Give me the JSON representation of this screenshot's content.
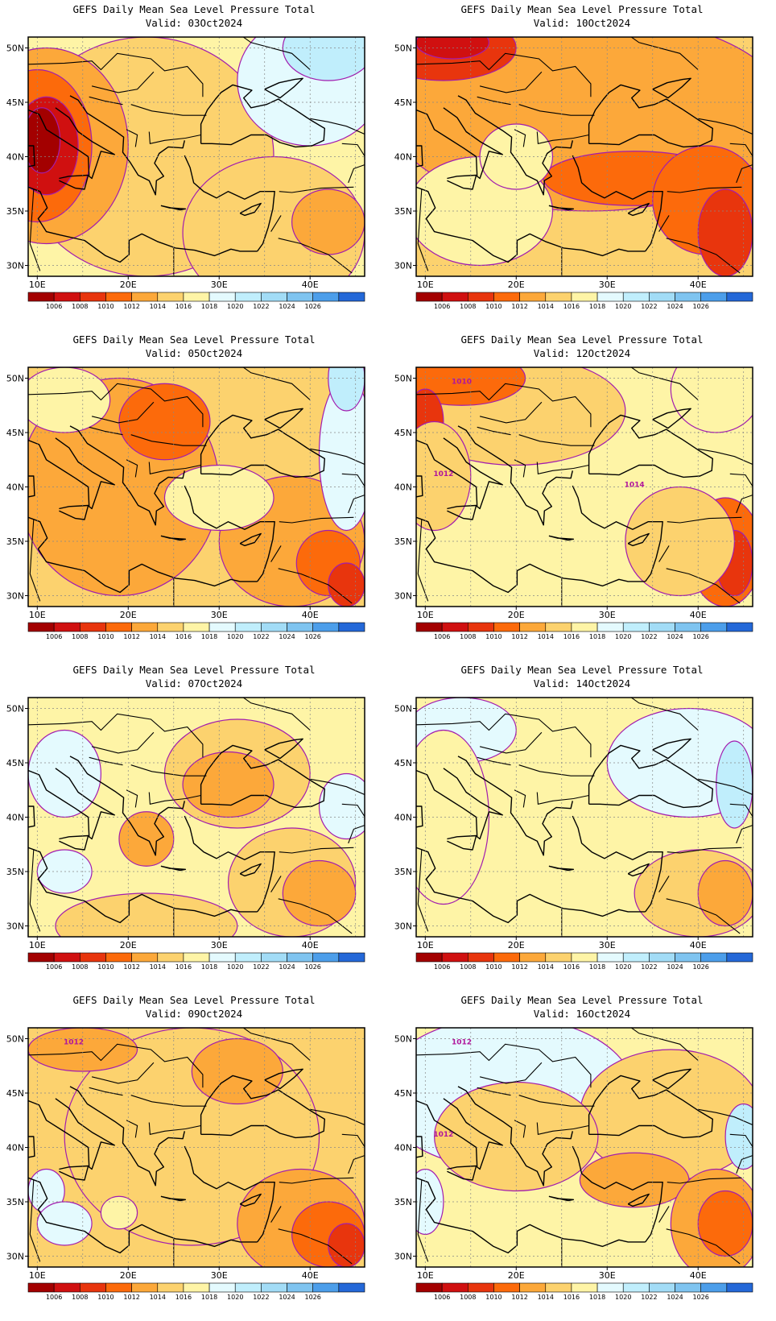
{
  "legend": {
    "colors": [
      "#a30000",
      "#d01010",
      "#e8350d",
      "#fc6a0b",
      "#fca83a",
      "#fcd26e",
      "#fef4a6",
      "#e4fafe",
      "#c0eefc",
      "#a2dcf6",
      "#7fc4f0",
      "#4c9eea",
      "#2468d8"
    ],
    "labels": [
      "1006",
      "1008",
      "1010",
      "1012",
      "1014",
      "1016",
      "1018",
      "1020",
      "1022",
      "1024",
      "1026"
    ]
  },
  "lat_labels": [
    "50N",
    "45N",
    "40N",
    "35N",
    "30N"
  ],
  "lon_labels": [
    "10E",
    "20E",
    "30E",
    "40E"
  ],
  "panels": [
    {
      "title": "GEFS Daily Mean Sea Level Pressure Total",
      "valid": "Valid: 03Oct2024",
      "contour_labels": [],
      "scheme": "d03"
    },
    {
      "title": "GEFS Daily Mean Sea Level Pressure Total",
      "valid": "Valid: 10Oct2024",
      "contour_labels": [],
      "scheme": "d10"
    },
    {
      "title": "GEFS Daily Mean Sea Level Pressure Total",
      "valid": "Valid: 05Oct2024",
      "contour_labels": [],
      "scheme": "d05"
    },
    {
      "title": "GEFS Daily Mean Sea Level Pressure Total",
      "valid": "Valid: 12Oct2024",
      "contour_labels": [
        "1010",
        "1012",
        "1014"
      ],
      "scheme": "d12"
    },
    {
      "title": "GEFS Daily Mean Sea Level Pressure Total",
      "valid": "Valid: 07Oct2024",
      "contour_labels": [],
      "scheme": "d07"
    },
    {
      "title": "GEFS Daily Mean Sea Level Pressure Total",
      "valid": "Valid: 14Oct2024",
      "contour_labels": [],
      "scheme": "d14"
    },
    {
      "title": "GEFS Daily Mean Sea Level Pressure Total",
      "valid": "Valid: 09Oct2024",
      "contour_labels": [
        "1012"
      ],
      "scheme": "d09"
    },
    {
      "title": "GEFS Daily Mean Sea Level Pressure Total",
      "valid": "Valid: 16Oct2024",
      "contour_labels": [
        "1012",
        "1012"
      ],
      "scheme": "d16"
    }
  ]
}
